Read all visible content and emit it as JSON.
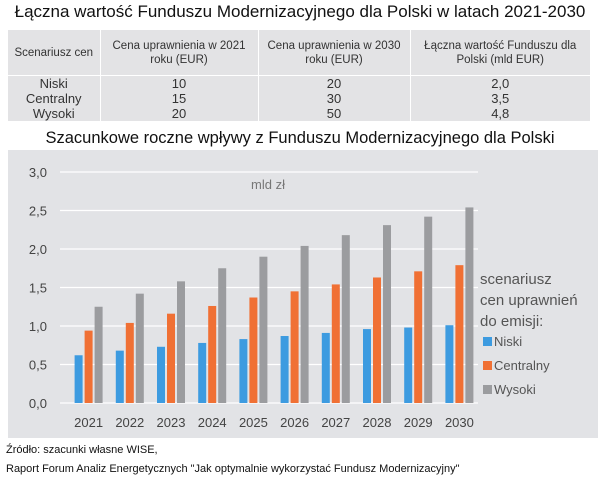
{
  "title": "Łączna wartość Funduszu Modernizacyjnego dla Polski w latach 2021-2030",
  "table": {
    "headers": [
      "Scenariusz cen",
      "Cena uprawnienia w 2021 roku (EUR)",
      "Cena uprawnienia w 2030 roku (EUR)",
      "Łączna wartość Funduszu dla Polski (mld EUR)"
    ],
    "rows": [
      [
        "Niski",
        "10",
        "20",
        "2,0"
      ],
      [
        "Centralny",
        "15",
        "30",
        "3,5"
      ],
      [
        "Wysoki",
        "20",
        "50",
        "4,8"
      ]
    ]
  },
  "chart_data": {
    "type": "bar",
    "title": "Szacunkowe roczne wpływy z Funduszu Modernizacyjnego dla Polski",
    "unit_label": "mld zł",
    "categories": [
      "2021",
      "2022",
      "2023",
      "2024",
      "2025",
      "2026",
      "2027",
      "2028",
      "2029",
      "2030"
    ],
    "ylim": [
      0,
      3.0
    ],
    "yticks": [
      "0,0",
      "0,5",
      "1,0",
      "1,5",
      "2,0",
      "2,5",
      "3,0"
    ],
    "grid": true,
    "legend_title": "scenariusz cen uprawnień do emisji:",
    "legend_placement": "right",
    "series": [
      {
        "name": "Niski",
        "color": "#3d9be0",
        "values": [
          0.62,
          0.68,
          0.73,
          0.78,
          0.83,
          0.87,
          0.91,
          0.96,
          0.98,
          1.01
        ]
      },
      {
        "name": "Centralny",
        "color": "#f07034",
        "values": [
          0.94,
          1.04,
          1.16,
          1.26,
          1.37,
          1.45,
          1.54,
          1.63,
          1.71,
          1.79
        ]
      },
      {
        "name": "Wysoki",
        "color": "#9b9c9f",
        "values": [
          1.25,
          1.42,
          1.58,
          1.75,
          1.9,
          2.04,
          2.18,
          2.31,
          2.42,
          2.54
        ]
      }
    ]
  },
  "footer": [
    "Źródło: szacunki własne WISE,",
    "Raport Forum Analiz Energetycznych \"Jak optymalnie wykorzystać Fundusz Modernizacyjny\""
  ]
}
